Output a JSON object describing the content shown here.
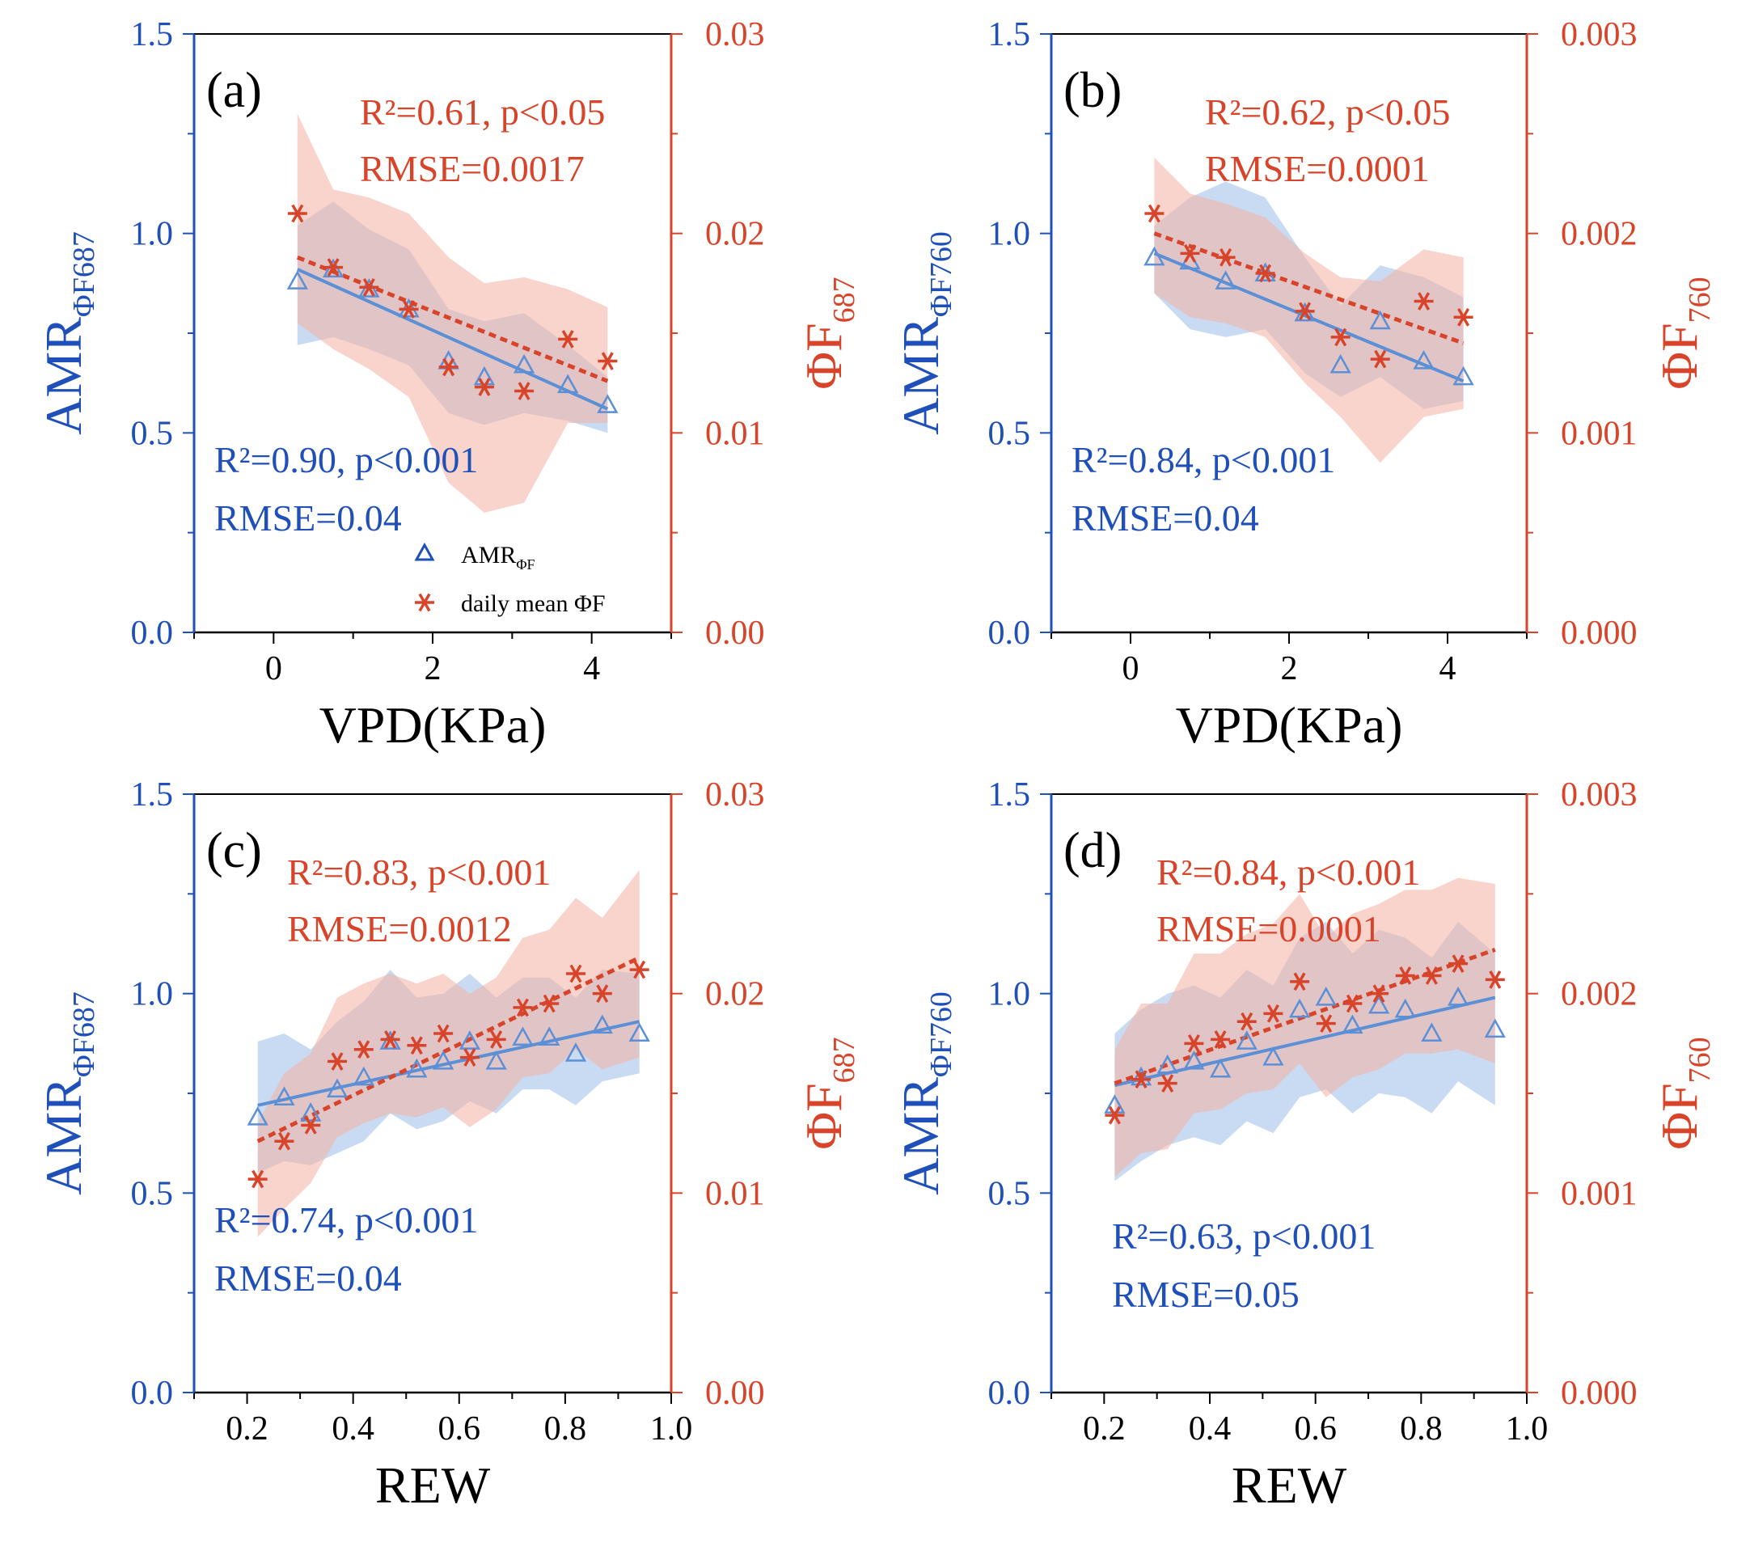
{
  "colors": {
    "blue": "#1f4fb8",
    "blue_line": "#5b8fd6",
    "blue_band": "#9dbde8",
    "red": "#d8442a",
    "red_band": "#f4b0a2",
    "black": "#000000"
  },
  "legend": {
    "amr_label": "AMR",
    "amr_sub": "ΦF",
    "phif_label": "daily mean ΦF"
  },
  "chart_data": [
    {
      "type": "scatter",
      "panel": "(a)",
      "xlabel": "VPD(KPa)",
      "xlim": [
        -1,
        5
      ],
      "xticks": [
        0,
        2,
        4
      ],
      "xtick_labels": [
        "0",
        "2",
        "4"
      ],
      "ylabel_left": {
        "main": "AMR",
        "sub": "ΦF687"
      },
      "ylabel_right": {
        "main": "ΦF",
        "sub": "687"
      },
      "ylim_left": [
        0,
        1.5
      ],
      "yticks_left": [
        "0.0",
        "0.5",
        "1.0",
        "1.5"
      ],
      "ylim_right": [
        0,
        0.03
      ],
      "yticks_right": [
        "0.00",
        "0.01",
        "0.02",
        "0.03"
      ],
      "blue_stats": {
        "r2": "R²=0.90, p<0.001",
        "rmse": "RMSE=0.04"
      },
      "red_stats": {
        "r2": "R²=0.61, p<0.05",
        "rmse": "RMSE=0.0017"
      },
      "amr": {
        "x": [
          0.3,
          0.75,
          1.2,
          1.7,
          2.2,
          2.65,
          3.15,
          3.7,
          4.2
        ],
        "y": [
          0.88,
          0.91,
          0.86,
          0.81,
          0.68,
          0.64,
          0.67,
          0.62,
          0.57
        ],
        "band_low": [
          0.72,
          0.74,
          0.71,
          0.67,
          0.55,
          0.52,
          0.55,
          0.53,
          0.5
        ],
        "band_high": [
          1.02,
          1.08,
          1.01,
          0.96,
          0.81,
          0.78,
          0.8,
          0.72,
          0.64
        ],
        "fit": [
          [
            0.3,
            0.91
          ],
          [
            4.2,
            0.56
          ]
        ]
      },
      "phif": {
        "x": [
          0.3,
          0.75,
          1.2,
          1.7,
          2.2,
          2.65,
          3.15,
          3.7,
          4.2
        ],
        "y": [
          0.021,
          0.0183,
          0.0173,
          0.0162,
          0.0133,
          0.0123,
          0.0121,
          0.0147,
          0.0136
        ],
        "band_low": [
          0.0155,
          0.0142,
          0.0132,
          0.0118,
          0.0075,
          0.006,
          0.0065,
          0.0105,
          0.0105
        ],
        "band_high": [
          0.026,
          0.0222,
          0.0218,
          0.021,
          0.0188,
          0.0175,
          0.0178,
          0.0172,
          0.0163
        ],
        "fit": [
          [
            0.3,
            0.0188
          ],
          [
            4.2,
            0.0126
          ]
        ]
      }
    },
    {
      "type": "scatter",
      "panel": "(b)",
      "xlabel": "VPD(KPa)",
      "xlim": [
        -1,
        5
      ],
      "xticks": [
        0,
        2,
        4
      ],
      "xtick_labels": [
        "0",
        "2",
        "4"
      ],
      "ylabel_left": {
        "main": "AMR",
        "sub": "ΦF760"
      },
      "ylabel_right": {
        "main": "ΦF",
        "sub": "760"
      },
      "ylim_left": [
        0,
        1.5
      ],
      "yticks_left": [
        "0.0",
        "0.5",
        "1.0",
        "1.5"
      ],
      "ylim_right": [
        0,
        0.003
      ],
      "yticks_right": [
        "0.000",
        "0.001",
        "0.002",
        "0.003"
      ],
      "blue_stats": {
        "r2": "R²=0.84, p<0.001",
        "rmse": "RMSE=0.04"
      },
      "red_stats": {
        "r2": "R²=0.62, p<0.05",
        "rmse": "RMSE=0.0001"
      },
      "amr": {
        "x": [
          0.3,
          0.75,
          1.2,
          1.7,
          2.2,
          2.65,
          3.15,
          3.7,
          4.2
        ],
        "y": [
          0.94,
          0.93,
          0.88,
          0.9,
          0.8,
          0.67,
          0.78,
          0.68,
          0.64
        ],
        "band_low": [
          0.85,
          0.76,
          0.74,
          0.76,
          0.65,
          0.59,
          0.64,
          0.56,
          0.58
        ],
        "band_high": [
          1.02,
          1.09,
          1.13,
          1.09,
          0.94,
          0.82,
          0.92,
          0.89,
          0.84
        ],
        "fit": [
          [
            0.3,
            0.95
          ],
          [
            4.2,
            0.63
          ]
        ]
      },
      "phif": {
        "x": [
          0.3,
          0.75,
          1.2,
          1.7,
          2.2,
          2.65,
          3.15,
          3.7,
          4.2
        ],
        "y": [
          0.0021,
          0.0019,
          0.00188,
          0.0018,
          0.00161,
          0.00148,
          0.00137,
          0.00166,
          0.00158
        ],
        "band_low": [
          0.0017,
          0.00158,
          0.00155,
          0.00148,
          0.00125,
          0.00108,
          0.00085,
          0.00108,
          0.00112
        ],
        "band_high": [
          0.00238,
          0.0022,
          0.00215,
          0.00208,
          0.0019,
          0.00178,
          0.00176,
          0.00192,
          0.00188
        ],
        "fit": [
          [
            0.3,
            0.002
          ],
          [
            4.2,
            0.00145
          ]
        ]
      }
    },
    {
      "type": "scatter",
      "panel": "(c)",
      "xlabel": "REW",
      "xlim": [
        0.1,
        1.0
      ],
      "xticks": [
        0.2,
        0.4,
        0.6,
        0.8,
        1.0
      ],
      "xtick_labels": [
        "0.2",
        "0.4",
        "0.6",
        "0.8",
        "1.0"
      ],
      "ylabel_left": {
        "main": "AMR",
        "sub": "ΦF687"
      },
      "ylabel_right": {
        "main": "ΦF",
        "sub": "687"
      },
      "ylim_left": [
        0,
        1.5
      ],
      "yticks_left": [
        "0.0",
        "0.5",
        "1.0",
        "1.5"
      ],
      "ylim_right": [
        0,
        0.03
      ],
      "yticks_right": [
        "0.00",
        "0.01",
        "0.02",
        "0.03"
      ],
      "blue_stats": {
        "r2": "R²=0.74, p<0.001",
        "rmse": "RMSE=0.04"
      },
      "red_stats": {
        "r2": "R²=0.83, p<0.001",
        "rmse": "RMSE=0.0012"
      },
      "amr": {
        "x": [
          0.22,
          0.27,
          0.32,
          0.37,
          0.42,
          0.47,
          0.52,
          0.57,
          0.62,
          0.67,
          0.72,
          0.77,
          0.82,
          0.87,
          0.94
        ],
        "y": [
          0.69,
          0.74,
          0.7,
          0.76,
          0.79,
          0.88,
          0.81,
          0.83,
          0.88,
          0.83,
          0.89,
          0.89,
          0.85,
          0.92,
          0.9
        ],
        "band_low": [
          0.55,
          0.58,
          0.57,
          0.6,
          0.63,
          0.7,
          0.66,
          0.68,
          0.73,
          0.7,
          0.76,
          0.76,
          0.72,
          0.78,
          0.8
        ],
        "band_high": [
          0.88,
          0.9,
          0.86,
          0.93,
          0.98,
          1.06,
          0.99,
          1.0,
          1.05,
          0.99,
          1.04,
          1.04,
          0.99,
          1.06,
          1.05
        ],
        "fit": [
          [
            0.22,
            0.72
          ],
          [
            0.94,
            0.93
          ]
        ]
      },
      "phif": {
        "x": [
          0.22,
          0.27,
          0.32,
          0.37,
          0.42,
          0.47,
          0.52,
          0.57,
          0.62,
          0.67,
          0.72,
          0.77,
          0.82,
          0.87,
          0.94
        ],
        "y": [
          0.0107,
          0.0126,
          0.0134,
          0.0166,
          0.0172,
          0.0177,
          0.0174,
          0.018,
          0.0168,
          0.0177,
          0.0193,
          0.0195,
          0.021,
          0.02,
          0.0212
        ],
        "band_low": [
          0.0078,
          0.0092,
          0.0105,
          0.0128,
          0.0135,
          0.014,
          0.0138,
          0.0143,
          0.0133,
          0.0142,
          0.0158,
          0.016,
          0.0172,
          0.0162,
          0.0168
        ],
        "band_high": [
          0.0135,
          0.016,
          0.017,
          0.0198,
          0.0205,
          0.021,
          0.0205,
          0.021,
          0.02,
          0.0208,
          0.0228,
          0.0232,
          0.0248,
          0.0238,
          0.0262
        ],
        "fit": [
          [
            0.22,
            0.0126
          ],
          [
            0.94,
            0.0218
          ]
        ]
      }
    },
    {
      "type": "scatter",
      "panel": "(d)",
      "xlabel": "REW",
      "xlim": [
        0.1,
        1.0
      ],
      "xticks": [
        0.2,
        0.4,
        0.6,
        0.8,
        1.0
      ],
      "xtick_labels": [
        "0.2",
        "0.4",
        "0.6",
        "0.8",
        "1.0"
      ],
      "ylabel_left": {
        "main": "AMR",
        "sub": "ΦF760"
      },
      "ylabel_right": {
        "main": "ΦF",
        "sub": "760"
      },
      "ylim_left": [
        0,
        1.5
      ],
      "yticks_left": [
        "0.0",
        "0.5",
        "1.0",
        "1.5"
      ],
      "ylim_right": [
        0,
        0.003
      ],
      "yticks_right": [
        "0.000",
        "0.001",
        "0.002",
        "0.003"
      ],
      "blue_stats": {
        "r2": "R²=0.63, p<0.001",
        "rmse": "RMSE=0.05"
      },
      "red_stats": {
        "r2": "R²=0.84, p<0.001",
        "rmse": "RMSE=0.0001"
      },
      "amr": {
        "x": [
          0.22,
          0.27,
          0.32,
          0.37,
          0.42,
          0.47,
          0.52,
          0.57,
          0.62,
          0.67,
          0.72,
          0.77,
          0.82,
          0.87,
          0.94
        ],
        "y": [
          0.72,
          0.79,
          0.82,
          0.83,
          0.81,
          0.88,
          0.84,
          0.96,
          0.99,
          0.92,
          0.97,
          0.96,
          0.9,
          0.99,
          0.91
        ],
        "band_low": [
          0.53,
          0.58,
          0.62,
          0.64,
          0.62,
          0.68,
          0.65,
          0.74,
          0.76,
          0.7,
          0.75,
          0.74,
          0.7,
          0.78,
          0.72
        ],
        "band_high": [
          0.9,
          0.96,
          1.0,
          1.02,
          0.99,
          1.06,
          1.02,
          1.14,
          1.18,
          1.1,
          1.16,
          1.14,
          1.09,
          1.18,
          1.1
        ],
        "fit": [
          [
            0.22,
            0.77
          ],
          [
            0.94,
            0.99
          ]
        ]
      },
      "phif": {
        "x": [
          0.22,
          0.27,
          0.32,
          0.37,
          0.42,
          0.47,
          0.52,
          0.57,
          0.62,
          0.67,
          0.72,
          0.77,
          0.82,
          0.87,
          0.94
        ],
        "y": [
          0.00139,
          0.00157,
          0.00155,
          0.00175,
          0.00177,
          0.00186,
          0.0019,
          0.00206,
          0.00185,
          0.00195,
          0.002,
          0.00209,
          0.00209,
          0.00215,
          0.00207
        ],
        "band_low": [
          0.00108,
          0.0012,
          0.00122,
          0.0014,
          0.00142,
          0.0015,
          0.00152,
          0.00165,
          0.00148,
          0.00158,
          0.00162,
          0.0017,
          0.0017,
          0.00172,
          0.00165
        ],
        "band_high": [
          0.00172,
          0.00195,
          0.00195,
          0.0022,
          0.0022,
          0.0023,
          0.00235,
          0.0025,
          0.00228,
          0.0024,
          0.00245,
          0.00252,
          0.00252,
          0.00258,
          0.00255
        ],
        "fit": [
          [
            0.22,
            0.00155
          ],
          [
            0.94,
            0.00222
          ]
        ]
      }
    }
  ]
}
